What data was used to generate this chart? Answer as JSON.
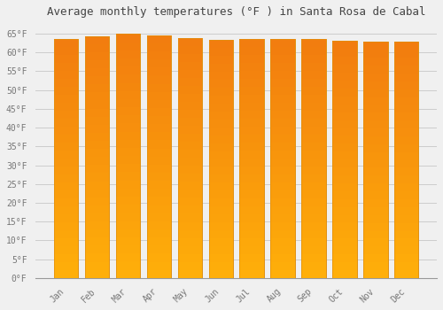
{
  "title": "Average monthly temperatures (°F ) in Santa Rosa de Cabal",
  "months": [
    "Jan",
    "Feb",
    "Mar",
    "Apr",
    "May",
    "Jun",
    "Jul",
    "Aug",
    "Sep",
    "Oct",
    "Nov",
    "Dec"
  ],
  "values": [
    63.7,
    64.4,
    64.9,
    64.6,
    63.9,
    63.3,
    63.5,
    63.7,
    63.5,
    63.0,
    62.8,
    62.8
  ],
  "bar_color": "#F5A623",
  "bar_edge_color": "#E09010",
  "ylim": [
    0,
    68
  ],
  "yticks": [
    0,
    5,
    10,
    15,
    20,
    25,
    30,
    35,
    40,
    45,
    50,
    55,
    60,
    65
  ],
  "ytick_labels": [
    "0°F",
    "5°F",
    "10°F",
    "15°F",
    "20°F",
    "25°F",
    "30°F",
    "35°F",
    "40°F",
    "45°F",
    "50°F",
    "55°F",
    "60°F",
    "65°F"
  ],
  "background_color": "#f0f0f0",
  "grid_color": "#cccccc",
  "title_fontsize": 9,
  "tick_fontsize": 7,
  "bar_width": 0.78
}
